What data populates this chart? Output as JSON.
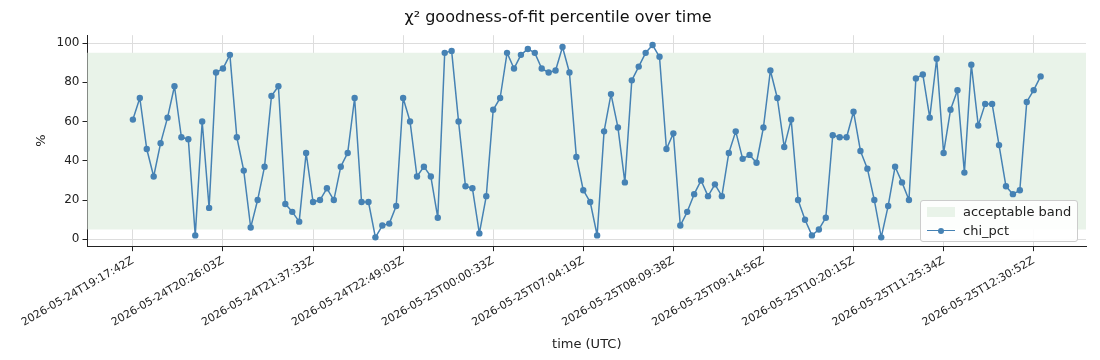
{
  "chart_data": {
    "type": "line",
    "title": "χ² goodness-of-fit percentile over time",
    "xlabel": "time (UTC)",
    "ylabel": "%",
    "categories": [
      "2026-05-24T19:17:42Z",
      null,
      null,
      null,
      null,
      null,
      null,
      null,
      null,
      null,
      null,
      null,
      null,
      "2026-05-24T20:26:03Z",
      null,
      null,
      null,
      null,
      null,
      null,
      null,
      null,
      null,
      null,
      null,
      null,
      "2026-05-24T21:37:33Z",
      null,
      null,
      null,
      null,
      null,
      null,
      null,
      null,
      null,
      null,
      null,
      null,
      "2026-05-24T22:49:03Z",
      null,
      null,
      null,
      null,
      null,
      null,
      null,
      null,
      null,
      null,
      null,
      null,
      "2026-05-25T00:00:33Z",
      null,
      null,
      null,
      null,
      null,
      null,
      null,
      null,
      null,
      null,
      null,
      null,
      "2026-05-25T07:04:19Z",
      null,
      null,
      null,
      null,
      null,
      null,
      null,
      null,
      null,
      null,
      null,
      null,
      "2026-05-25T08:09:38Z",
      null,
      null,
      null,
      null,
      null,
      null,
      null,
      null,
      null,
      null,
      null,
      null,
      "2026-05-25T09:14:56Z",
      null,
      null,
      null,
      null,
      null,
      null,
      null,
      null,
      null,
      null,
      null,
      null,
      "2026-05-25T10:20:15Z",
      null,
      null,
      null,
      null,
      null,
      null,
      null,
      null,
      null,
      null,
      null,
      null,
      "2026-05-25T11:25:34Z",
      null,
      null,
      null,
      null,
      null,
      null,
      null,
      null,
      null,
      null,
      null,
      null,
      "2026-05-25T12:30:52Z",
      null
    ],
    "series": [
      {
        "name": "chi_pct",
        "color": "#4682b4",
        "values": [
          61,
          72,
          46,
          32,
          49,
          62,
          78,
          52,
          51,
          2,
          60,
          16,
          85,
          87,
          94,
          52,
          35,
          6,
          20,
          37,
          73,
          78,
          18,
          14,
          9,
          44,
          19,
          20,
          26,
          20,
          37,
          44,
          72,
          19,
          19,
          1,
          7,
          8,
          17,
          72,
          60,
          32,
          37,
          32,
          11,
          95,
          96,
          60,
          27,
          26,
          3,
          22,
          66,
          72,
          95,
          87,
          94,
          97,
          95,
          87,
          85,
          86,
          98,
          85,
          42,
          25,
          19,
          2,
          55,
          74,
          57,
          29,
          81,
          88,
          95,
          99,
          93,
          46,
          54,
          7,
          14,
          23,
          30,
          22,
          28,
          22,
          44,
          55,
          41,
          43,
          39,
          57,
          86,
          72,
          47,
          61,
          20,
          10,
          2,
          5,
          11,
          53,
          52,
          52,
          65,
          45,
          36,
          20,
          1,
          17,
          37,
          29,
          20,
          82,
          84,
          62,
          92,
          44,
          66,
          76,
          34,
          89,
          58,
          69,
          69,
          48,
          27,
          23,
          25,
          70,
          76,
          83
        ]
      }
    ],
    "bands": [
      {
        "axis": "y",
        "from": 5,
        "to": 95,
        "label": "acceptable band",
        "color": "#e9f3e9"
      }
    ],
    "ylim": [
      -3.5,
      104
    ],
    "yticks": [
      0,
      20,
      40,
      60,
      80,
      100
    ],
    "grid": true,
    "legend": "bottom right",
    "marker": "circle",
    "line_style": "solid"
  }
}
